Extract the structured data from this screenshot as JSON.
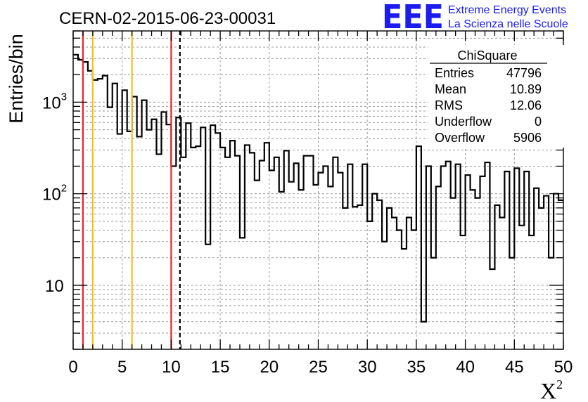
{
  "chart_data": {
    "type": "histogram",
    "title": "CERN-02-2015-06-23-00031",
    "xlabel": "X",
    "xlabel_superscript": "2",
    "ylabel": "Entries/bin",
    "xlim": [
      0,
      50
    ],
    "ylim": [
      2,
      6000
    ],
    "yscale": "log",
    "bin_width": 0.5,
    "x_ticks": [
      "0",
      "5",
      "10",
      "15",
      "20",
      "25",
      "30",
      "35",
      "40",
      "45",
      "50"
    ],
    "y_ticks": [
      {
        "value": 10,
        "base": "10",
        "exp": ""
      },
      {
        "value": 100,
        "base": "10",
        "exp": "2"
      },
      {
        "value": 1000,
        "base": "10",
        "exp": "3"
      }
    ],
    "grid": true,
    "bin_values": [
      3300,
      2900,
      2750,
      2200,
      1750,
      1800,
      1950,
      880,
      1600,
      450,
      1350,
      480,
      1150,
      420,
      1050,
      500,
      650,
      270,
      780,
      570,
      200,
      680,
      250,
      590,
      320,
      330,
      530,
      28,
      560,
      460,
      320,
      250,
      380,
      260,
      33,
      340,
      280,
      140,
      230,
      360,
      180,
      250,
      105,
      295,
      135,
      215,
      110,
      260,
      260,
      125,
      170,
      200,
      120,
      250,
      170,
      70,
      210,
      72,
      75,
      210,
      50,
      100,
      85,
      30,
      70,
      55,
      40,
      25,
      55,
      40,
      330,
      4,
      200,
      20,
      120,
      200,
      225,
      90,
      210,
      35,
      160,
      110,
      90,
      155,
      220,
      15,
      75,
      55,
      175,
      20,
      190,
      45,
      175,
      35,
      115,
      70,
      95,
      20,
      100,
      85
    ],
    "vertical_lines": [
      {
        "x": 1,
        "color": "#e8252c",
        "style": "solid"
      },
      {
        "x": 2,
        "color": "#f2c21b",
        "style": "solid"
      },
      {
        "x": 6,
        "color": "#f2c21b",
        "style": "solid"
      },
      {
        "x": 10,
        "color": "#e8252c",
        "style": "solid"
      },
      {
        "x": 10.89,
        "color": "#000000",
        "style": "dashed"
      }
    ],
    "legend_position": "top-right",
    "stats_box": {
      "title": "ChiSquare",
      "rows": [
        {
          "label": "Entries",
          "value": "47796"
        },
        {
          "label": "Mean",
          "value": "10.89"
        },
        {
          "label": "RMS",
          "value": "12.06"
        },
        {
          "label": "Underflow",
          "value": "0"
        },
        {
          "label": "Overflow",
          "value": "5906"
        }
      ]
    }
  },
  "logo": {
    "text": "EEE",
    "line1": "Extreme Energy Events",
    "line2": "La Scienza nelle Scuole",
    "color": "#1c1cf0"
  },
  "colors": {
    "grid": "#9a9a9a",
    "histogram": "#000000"
  }
}
